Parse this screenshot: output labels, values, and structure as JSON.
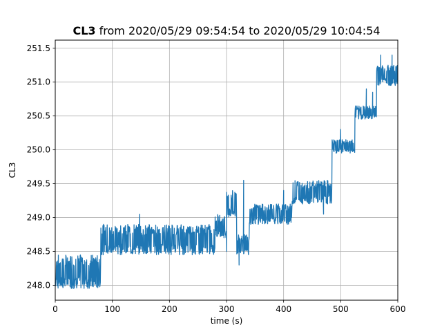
{
  "chart_data": {
    "type": "line",
    "title_bold": "CL3",
    "title_rest": " from 2020/05/29 09:54:54 to 2020/05/29 10:04:54",
    "xlabel": "time (s)",
    "ylabel": "CL3",
    "xlim": [
      0,
      600
    ],
    "ylim": [
      247.78,
      251.62
    ],
    "xticks": [
      0,
      100,
      200,
      300,
      400,
      500,
      600
    ],
    "yticks": [
      248.0,
      248.5,
      249.0,
      249.5,
      250.0,
      250.5,
      251.0,
      251.5
    ],
    "xtick_labels": [
      "0",
      "100",
      "200",
      "300",
      "400",
      "500",
      "600"
    ],
    "ytick_labels": [
      "248.0",
      "248.5",
      "249.0",
      "249.5",
      "250.0",
      "250.5",
      "251.0",
      "251.5"
    ],
    "grid": true,
    "series_color": "#1f77b4",
    "series": [
      {
        "segments": [
          {
            "x0": 0,
            "x1": 80,
            "low": 247.95,
            "high": 248.45
          },
          {
            "x0": 80,
            "x1": 280,
            "low": 248.45,
            "high": 248.9
          },
          {
            "x0": 280,
            "x1": 300,
            "low": 248.7,
            "high": 249.05
          },
          {
            "x0": 300,
            "x1": 318,
            "low": 249.0,
            "high": 249.4
          },
          {
            "x0": 318,
            "x1": 340,
            "low": 248.45,
            "high": 248.75
          },
          {
            "x0": 340,
            "x1": 415,
            "low": 248.9,
            "high": 249.2
          },
          {
            "x0": 415,
            "x1": 485,
            "low": 249.2,
            "high": 249.55
          },
          {
            "x0": 485,
            "x1": 525,
            "low": 249.95,
            "high": 250.15
          },
          {
            "x0": 525,
            "x1": 563,
            "low": 250.45,
            "high": 250.65
          },
          {
            "x0": 563,
            "x1": 600,
            "low": 250.95,
            "high": 251.25
          }
        ],
        "spikes": [
          {
            "x": 148,
            "y": 249.05
          },
          {
            "x": 322,
            "y": 248.3
          },
          {
            "x": 330,
            "y": 249.55
          },
          {
            "x": 308,
            "y": 249.2
          },
          {
            "x": 400,
            "y": 249.4
          },
          {
            "x": 470,
            "y": 249.05
          },
          {
            "x": 500,
            "y": 250.3
          },
          {
            "x": 545,
            "y": 250.9
          },
          {
            "x": 556,
            "y": 250.85
          },
          {
            "x": 570,
            "y": 251.4
          },
          {
            "x": 590,
            "y": 251.4
          },
          {
            "x": 300,
            "y": 248.5
          }
        ]
      }
    ]
  }
}
